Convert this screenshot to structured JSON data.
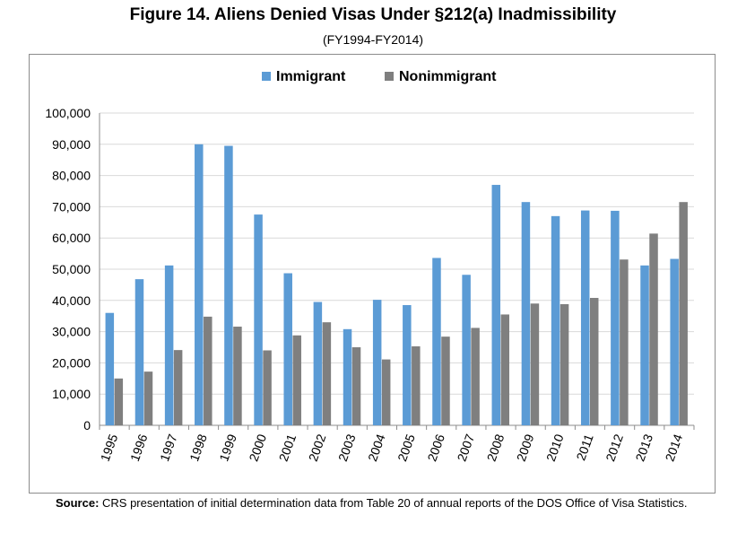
{
  "figure": {
    "title": "Figure 14. Aliens Denied Visas Under §212(a) Inadmissibility",
    "subtitle": "(FY1994-FY2014)"
  },
  "source": {
    "label": "Source:",
    "text": " CRS presentation of initial determination data from Table 20 of annual reports of the DOS Office of Visa Statistics."
  },
  "colors": {
    "immigrant": "#5b9bd5",
    "nonimmigrant": "#7f7f7f",
    "grid": "#d9d9d9",
    "axis": "#8c8c8c"
  },
  "chart_data": {
    "type": "bar",
    "categories": [
      "1995",
      "1996",
      "1997",
      "1998",
      "1999",
      "2000",
      "2001",
      "2002",
      "2003",
      "2004",
      "2005",
      "2006",
      "2007",
      "2008",
      "2009",
      "2010",
      "2011",
      "2012",
      "2013",
      "2014"
    ],
    "series": [
      {
        "name": "Immigrant",
        "values": [
          36000,
          46800,
          51200,
          90000,
          89500,
          67500,
          48700,
          39500,
          30800,
          40200,
          38500,
          53600,
          48200,
          77000,
          71500,
          67000,
          68800,
          68700,
          51200,
          53300
        ]
      },
      {
        "name": "Nonimmigrant",
        "values": [
          15000,
          17200,
          24100,
          34800,
          31600,
          24000,
          28800,
          33000,
          25000,
          21100,
          25300,
          28400,
          31200,
          35500,
          39000,
          38800,
          40800,
          53100,
          61400,
          71500
        ]
      }
    ],
    "ylim": [
      0,
      100000
    ],
    "yticks": [
      0,
      10000,
      20000,
      30000,
      40000,
      50000,
      60000,
      70000,
      80000,
      90000,
      100000
    ],
    "ytick_labels": [
      "0",
      "10,000",
      "20,000",
      "30,000",
      "40,000",
      "50,000",
      "60,000",
      "70,000",
      "80,000",
      "90,000",
      "100,000"
    ],
    "legend": "top-center",
    "grid": true
  }
}
